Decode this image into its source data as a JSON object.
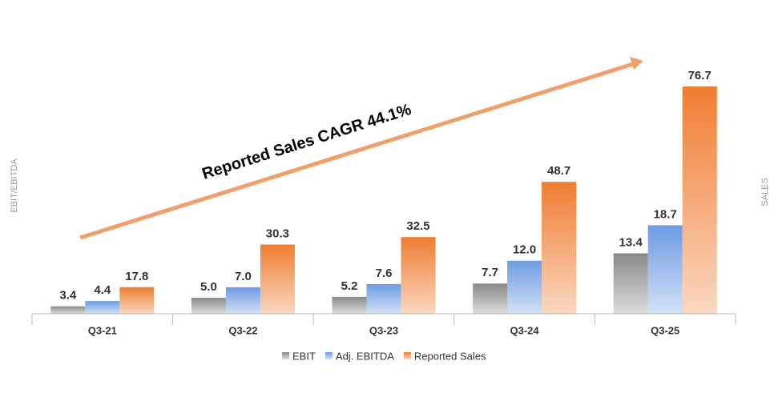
{
  "chart_data": {
    "type": "bar",
    "annotation": "Reported Sales CAGR 44.1%",
    "ylabel": "EBIT/EBITDA",
    "y2label": "SALES",
    "categories": [
      "Q3-21",
      "Q3-22",
      "Q3-23",
      "Q3-24",
      "Q3-25"
    ],
    "series": [
      {
        "name": "EBIT",
        "color": "#8a8a8a",
        "values": [
          3.4,
          5.0,
          5.2,
          7.7,
          13.4
        ],
        "value_labels": [
          "3.4",
          "5.0",
          "5.2",
          "7.7",
          "13.4"
        ]
      },
      {
        "name": "Adj. EBITDA",
        "color": "#6d9be3",
        "values": [
          4.4,
          7.0,
          7.6,
          12.0,
          18.7
        ],
        "value_labels": [
          "4.4",
          "7.0",
          "7.6",
          "12.0",
          "18.7"
        ]
      },
      {
        "name": "Reported Sales",
        "color": "#ef7d31",
        "axis": "y2",
        "values": [
          17.8,
          30.3,
          32.5,
          48.7,
          76.7
        ],
        "value_labels": [
          "17.8",
          "30.3",
          "32.5",
          "48.7",
          "76.7"
        ]
      }
    ],
    "ylim": [
      2,
      47
    ],
    "y2lim": [
      10,
      80
    ],
    "legend": "bottom"
  }
}
